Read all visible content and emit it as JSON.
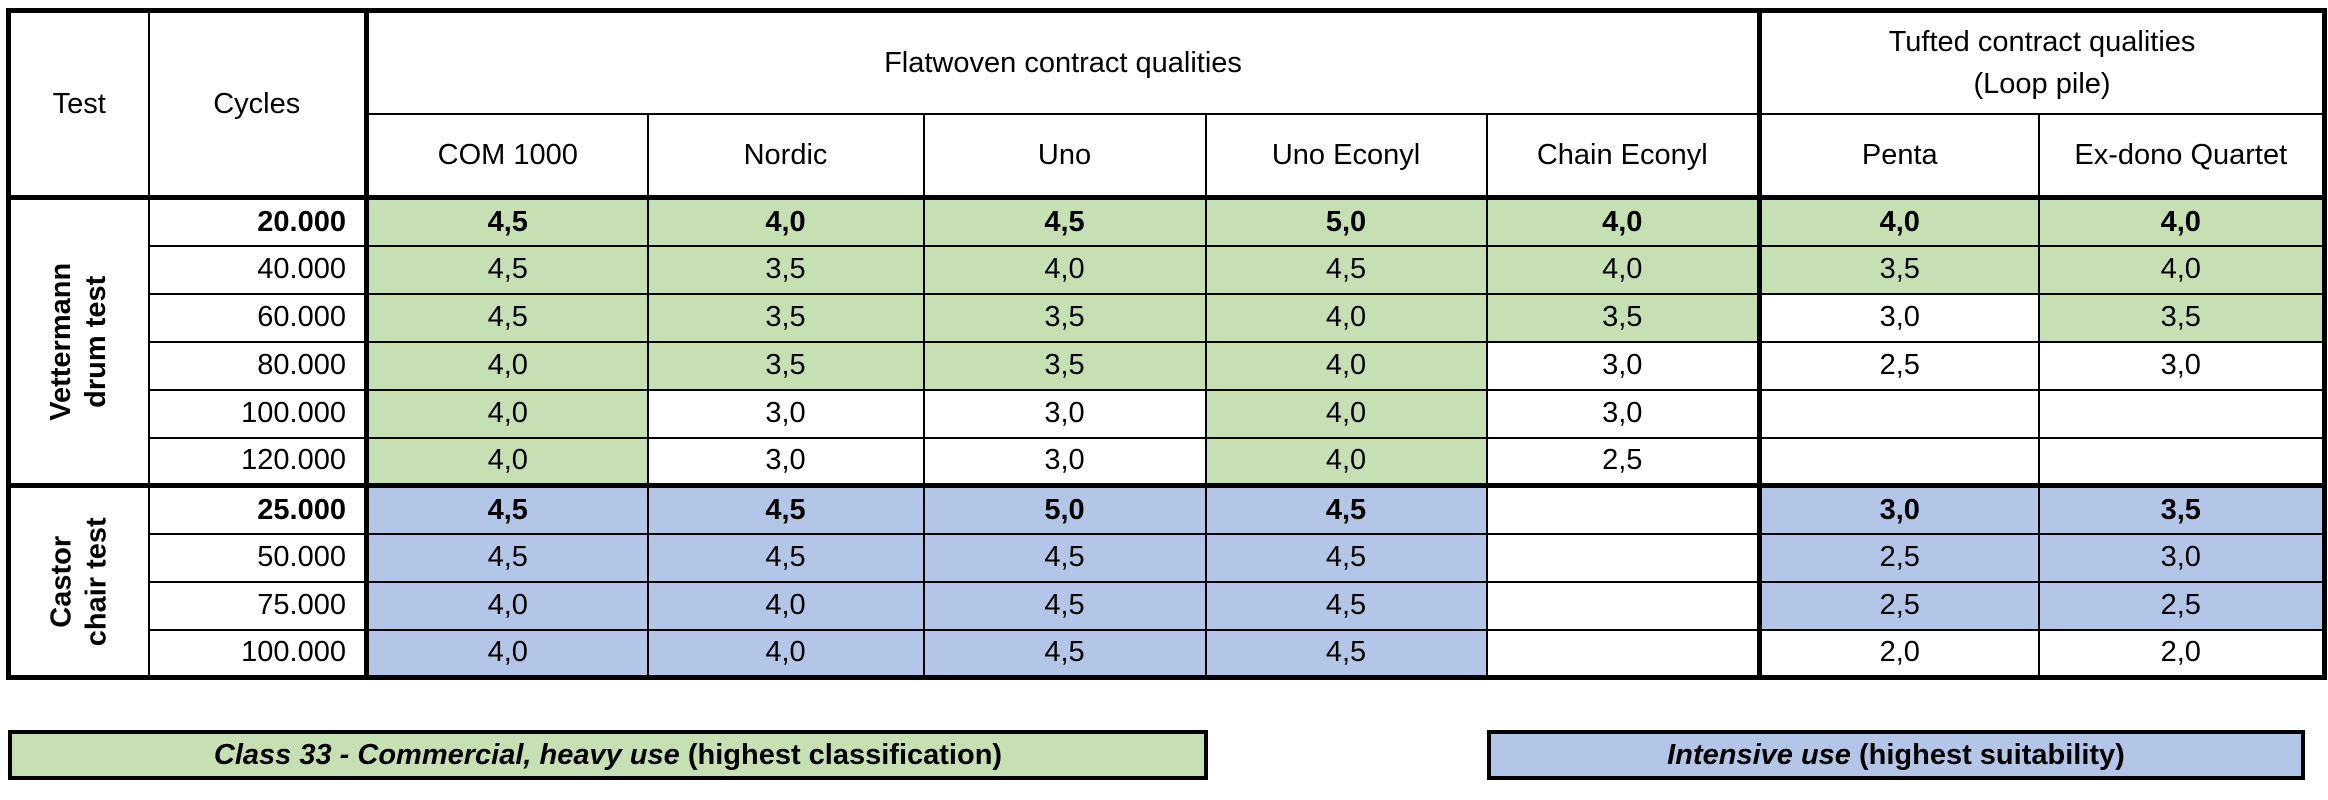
{
  "colors": {
    "green": "#C6E0B4",
    "blue": "#B4C6E7",
    "border": "#000000"
  },
  "table": {
    "corner_test": "Test",
    "corner_cycles": "Cycles",
    "groups": [
      {
        "lines": [
          "Flatwoven contract qualities"
        ],
        "span": 5
      },
      {
        "lines": [
          "Tufted contract qualities",
          "(Loop pile)"
        ],
        "span": 2
      }
    ],
    "product_columns": [
      "COM 1000",
      "Nordic",
      "Uno",
      "Uno Econyl",
      "Chain Econyl",
      "Penta",
      "Ex-dono Quartet"
    ],
    "sections": [
      {
        "test_label_lines": [
          "Vettermann",
          "drum test"
        ],
        "highlight": "g",
        "rows": [
          {
            "cycles": "20.000",
            "bold": true,
            "cells": [
              [
                "4,5",
                "g"
              ],
              [
                "4,0",
                "g"
              ],
              [
                "4,5",
                "g"
              ],
              [
                "5,0",
                "g"
              ],
              [
                "4,0",
                "g"
              ],
              [
                "4,0",
                "g"
              ],
              [
                "4,0",
                "g"
              ]
            ]
          },
          {
            "cycles": "40.000",
            "bold": false,
            "cells": [
              [
                "4,5",
                "g"
              ],
              [
                "3,5",
                "g"
              ],
              [
                "4,0",
                "g"
              ],
              [
                "4,5",
                "g"
              ],
              [
                "4,0",
                "g"
              ],
              [
                "3,5",
                "g"
              ],
              [
                "4,0",
                "g"
              ]
            ]
          },
          {
            "cycles": "60.000",
            "bold": false,
            "cells": [
              [
                "4,5",
                "g"
              ],
              [
                "3,5",
                "g"
              ],
              [
                "3,5",
                "g"
              ],
              [
                "4,0",
                "g"
              ],
              [
                "3,5",
                "g"
              ],
              [
                "3,0",
                ""
              ],
              [
                "3,5",
                "g"
              ]
            ]
          },
          {
            "cycles": "80.000",
            "bold": false,
            "cells": [
              [
                "4,0",
                "g"
              ],
              [
                "3,5",
                "g"
              ],
              [
                "3,5",
                "g"
              ],
              [
                "4,0",
                "g"
              ],
              [
                "3,0",
                ""
              ],
              [
                "2,5",
                ""
              ],
              [
                "3,0",
                ""
              ]
            ]
          },
          {
            "cycles": "100.000",
            "bold": false,
            "cells": [
              [
                "4,0",
                "g"
              ],
              [
                "3,0",
                ""
              ],
              [
                "3,0",
                ""
              ],
              [
                "4,0",
                "g"
              ],
              [
                "3,0",
                ""
              ],
              [
                "",
                ""
              ],
              [
                "",
                ""
              ]
            ]
          },
          {
            "cycles": "120.000",
            "bold": false,
            "cells": [
              [
                "4,0",
                "g"
              ],
              [
                "3,0",
                ""
              ],
              [
                "3,0",
                ""
              ],
              [
                "4,0",
                "g"
              ],
              [
                "2,5",
                ""
              ],
              [
                "",
                ""
              ],
              [
                "",
                ""
              ]
            ]
          }
        ]
      },
      {
        "test_label_lines": [
          "Castor",
          "chair test"
        ],
        "highlight": "b",
        "rows": [
          {
            "cycles": "25.000",
            "bold": true,
            "cells": [
              [
                "4,5",
                "b"
              ],
              [
                "4,5",
                "b"
              ],
              [
                "5,0",
                "b"
              ],
              [
                "4,5",
                "b"
              ],
              [
                "",
                ""
              ],
              [
                "3,0",
                "b"
              ],
              [
                "3,5",
                "b"
              ]
            ]
          },
          {
            "cycles": "50.000",
            "bold": false,
            "cells": [
              [
                "4,5",
                "b"
              ],
              [
                "4,5",
                "b"
              ],
              [
                "4,5",
                "b"
              ],
              [
                "4,5",
                "b"
              ],
              [
                "",
                ""
              ],
              [
                "2,5",
                "b"
              ],
              [
                "3,0",
                "b"
              ]
            ]
          },
          {
            "cycles": "75.000",
            "bold": false,
            "cells": [
              [
                "4,0",
                "b"
              ],
              [
                "4,0",
                "b"
              ],
              [
                "4,5",
                "b"
              ],
              [
                "4,5",
                "b"
              ],
              [
                "",
                ""
              ],
              [
                "2,5",
                "b"
              ],
              [
                "2,5",
                "b"
              ]
            ]
          },
          {
            "cycles": "100.000",
            "bold": false,
            "cells": [
              [
                "4,0",
                "b"
              ],
              [
                "4,0",
                "b"
              ],
              [
                "4,5",
                "b"
              ],
              [
                "4,5",
                "b"
              ],
              [
                "",
                ""
              ],
              [
                "2,0",
                ""
              ],
              [
                "2,0",
                ""
              ]
            ]
          }
        ]
      }
    ]
  },
  "legend": {
    "green": {
      "italic": "Class 33 - Commercial, heavy use",
      "rest": " (highest classification)"
    },
    "blue": {
      "italic": "Intensive use",
      "rest": " (highest suitability)"
    }
  }
}
